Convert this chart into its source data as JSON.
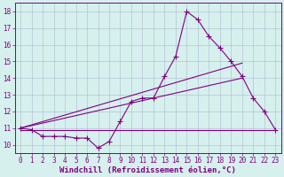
{
  "xlabel": "Windchill (Refroidissement éolien,°C)",
  "bg_color": "#d6f0ee",
  "line_color": "#800080",
  "grid_color": "#b0b8cc",
  "xlim": [
    -0.5,
    23.5
  ],
  "ylim": [
    9.5,
    18.5
  ],
  "xticks": [
    0,
    1,
    2,
    3,
    4,
    5,
    6,
    7,
    8,
    9,
    10,
    11,
    12,
    13,
    14,
    15,
    16,
    17,
    18,
    19,
    20,
    21,
    22,
    23
  ],
  "yticks": [
    10,
    11,
    12,
    13,
    14,
    15,
    16,
    17,
    18
  ],
  "line1_x": [
    0,
    1,
    2,
    3,
    4,
    5,
    6,
    7,
    8,
    9,
    10,
    11,
    12,
    13,
    14,
    15,
    16,
    17,
    18,
    19,
    20,
    21,
    22,
    23
  ],
  "line1_y": [
    11.0,
    10.9,
    10.5,
    10.5,
    10.5,
    10.4,
    10.4,
    9.8,
    10.2,
    11.4,
    12.6,
    12.8,
    12.8,
    14.1,
    15.3,
    18.0,
    17.5,
    16.5,
    15.8,
    15.0,
    14.1,
    12.8,
    12.0,
    10.9
  ],
  "line2_x": [
    0,
    20
  ],
  "line2_y": [
    11.0,
    14.9
  ],
  "line3_x": [
    0,
    20
  ],
  "line3_y": [
    11.0,
    14.0
  ],
  "line4_x": [
    0,
    23
  ],
  "line4_y": [
    10.9,
    10.9
  ],
  "xlabel_fontsize": 6.5,
  "tick_fontsize": 5.5,
  "marker_size": 2.0,
  "line_width": 0.8
}
